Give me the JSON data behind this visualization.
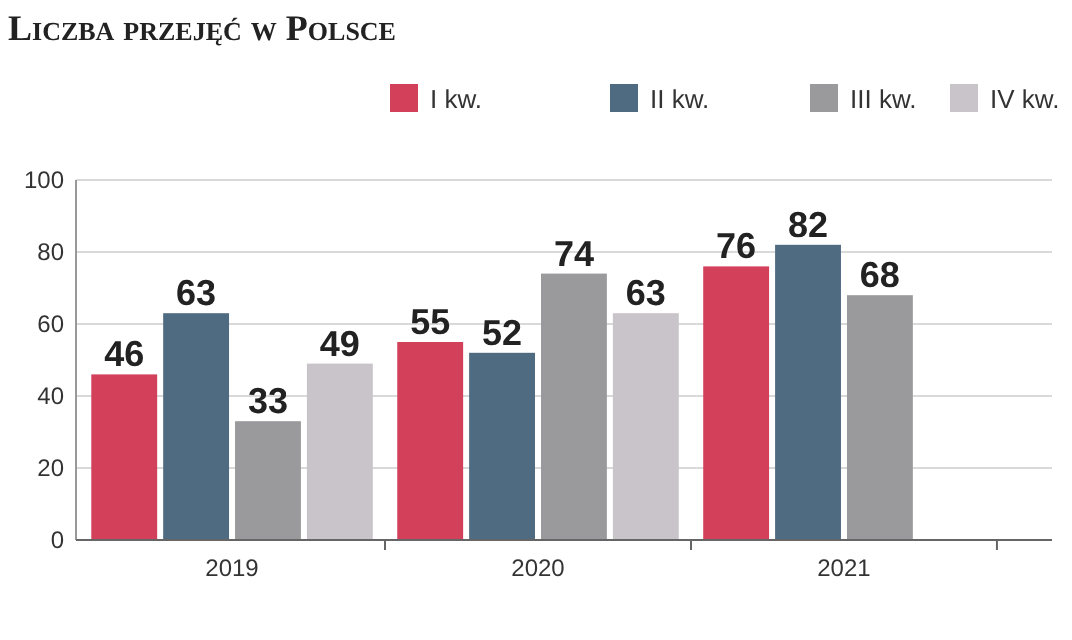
{
  "chart_data": {
    "type": "bar",
    "title": "Liczba przejęć w Polsce",
    "categories": [
      "2019",
      "2020",
      "2021"
    ],
    "series": [
      {
        "name": "I kw.",
        "color": "#d2405a",
        "values": [
          46,
          55,
          76
        ]
      },
      {
        "name": "II kw.",
        "color": "#4f6b82",
        "values": [
          63,
          52,
          82
        ]
      },
      {
        "name": "III kw.",
        "color": "#9a9a9c",
        "values": [
          33,
          74,
          68
        ]
      },
      {
        "name": "IV kw.",
        "color": "#c9c4c9",
        "values": [
          49,
          63,
          null
        ]
      }
    ],
    "ylim": [
      0,
      100
    ],
    "yticks": [
      0,
      20,
      40,
      60,
      80,
      100
    ],
    "grid": "y",
    "legend": "top right",
    "data_labels": true
  }
}
